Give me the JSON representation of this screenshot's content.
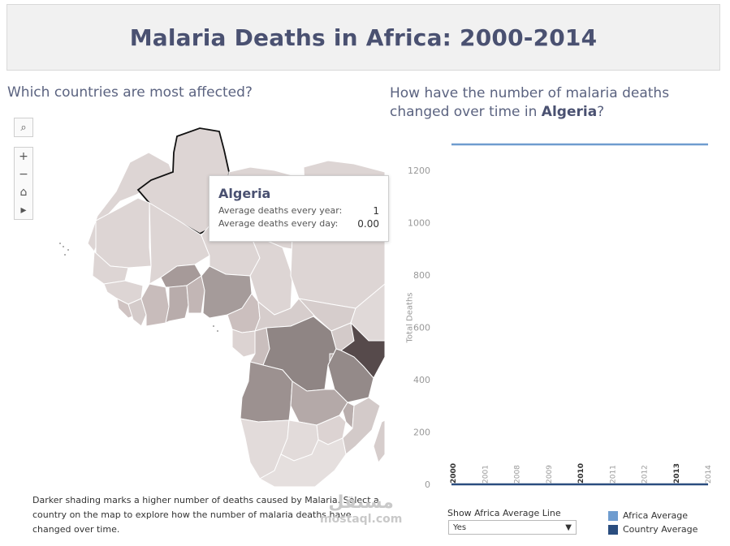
{
  "page": {
    "title": "Malaria Deaths in Africa: 2000-2014",
    "question_left": "Which countries are most affected?",
    "question_right_prefix": "How have the number of malaria deaths changed over time in ",
    "question_right_country": "Algeria",
    "question_right_suffix": "?"
  },
  "map_controls": {
    "search_icon": "search-icon",
    "zoom_in": "+",
    "zoom_out": "−",
    "home": "⌂",
    "pan": "▸"
  },
  "tooltip": {
    "country": "Algeria",
    "rows": [
      {
        "label": "Average deaths every year:",
        "value": "1"
      },
      {
        "label": "Average deaths every day:",
        "value": "0.00"
      }
    ]
  },
  "caption": "Darker shading marks a higher number of deaths caused by Malaria. Select a country on the map to explore how the number of malaria deaths have changed over time.",
  "watermark": {
    "line1": "مستقل",
    "line2": "mostaql.com"
  },
  "chart_data": {
    "type": "line",
    "ylabel": "Total Deaths",
    "ylim": [
      0,
      1300
    ],
    "yticks": [
      0,
      200,
      400,
      600,
      800,
      1000,
      1200
    ],
    "x": [
      "2000",
      "2001",
      "2008",
      "2009",
      "2010",
      "2011",
      "2012",
      "2013",
      "2014"
    ],
    "bold_x_labels": [
      "2000",
      "2010",
      "2013"
    ],
    "series": [
      {
        "name": "Africa Average",
        "color": "#6f9ccf",
        "values": [
          1300,
          1300,
          1300,
          1300,
          1300,
          1300,
          1300,
          1300,
          1300
        ]
      },
      {
        "name": "Country Average",
        "color": "#2a4d7f",
        "values": [
          0,
          0,
          0,
          0,
          0,
          0,
          0,
          0,
          0
        ]
      }
    ]
  },
  "filter": {
    "label": "Show Africa Average Line",
    "value": "Yes"
  },
  "legend": [
    {
      "label": "Africa Average",
      "color": "#6f9ccf"
    },
    {
      "label": "Country Average",
      "color": "#2a4d7f"
    }
  ]
}
